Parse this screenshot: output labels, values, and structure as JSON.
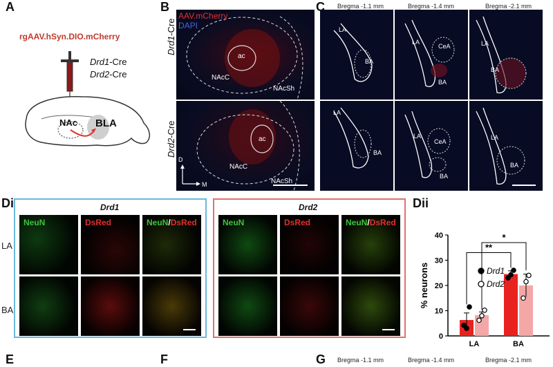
{
  "labels": {
    "A": "A",
    "B": "B",
    "C": "C",
    "Di": "Di",
    "Dii": "Dii",
    "E": "E",
    "F": "F",
    "G": "G"
  },
  "panelA": {
    "virus": "rgAAV.hSyn.DIO.mCherry",
    "line1": "Drd1",
    "line1_suffix": "-Cre",
    "line2": "Drd2",
    "line2_suffix": "-Cre",
    "nac": "NAc",
    "bla": "BLA"
  },
  "panelB": {
    "mcherry": "AAV.mCherry",
    "dapi": "DAPI",
    "row1": "Drd1",
    "row1_suffix": "-Cre",
    "row2": "Drd2",
    "row2_suffix": "-Cre",
    "ac": "ac",
    "nacc": "NAcC",
    "nacsh": "NAcSh",
    "axis_d": "D",
    "axis_m": "M"
  },
  "panelC": {
    "bregma": [
      "Bregma -1.1 mm",
      "Bregma -1.4 mm",
      "Bregma -2.1 mm"
    ],
    "la": "LA",
    "ba": "BA",
    "cea": "CeA"
  },
  "panelD": {
    "title_drd1": "Drd1",
    "title_drd2": "Drd2",
    "neun": "NeuN",
    "dsred": "DsRed",
    "slash": "/",
    "row_la": "LA",
    "row_ba": "BA",
    "colors": {
      "drd1_border": "#6bb8da",
      "drd2_border": "#e07070"
    }
  },
  "panelG": {
    "bregma": [
      "Bregma -1.1 mm",
      "Bregma -1.4 mm",
      "Bregma -2.1 mm"
    ]
  },
  "chart_data": {
    "type": "bar",
    "ylabel": "% neurons",
    "categories": [
      "LA",
      "BA"
    ],
    "ylim": [
      0,
      40
    ],
    "yticks": [
      0,
      10,
      20,
      30,
      40
    ],
    "series": [
      {
        "name": "Drd1",
        "color": "#e8231f",
        "values": [
          6.3,
          24.5
        ],
        "errors": [
          2.8,
          1.3
        ],
        "points": [
          [
            4.2,
            3.0,
            11.5
          ],
          [
            23.0,
            24.2,
            26.0
          ]
        ]
      },
      {
        "name": "Drd2",
        "color": "#f4a7a7",
        "values": [
          8.2,
          20.0
        ],
        "errors": [
          1.3,
          4.5
        ],
        "points": [
          [
            6.2,
            8.0,
            10.2
          ],
          [
            15.0,
            21.5,
            24.0
          ]
        ]
      }
    ],
    "significance": [
      {
        "label": "**",
        "between": [
          "LA-Drd1",
          "BA-Drd1"
        ]
      },
      {
        "label": "*",
        "between": [
          "LA-Drd2",
          "BA-Drd2"
        ]
      }
    ]
  }
}
